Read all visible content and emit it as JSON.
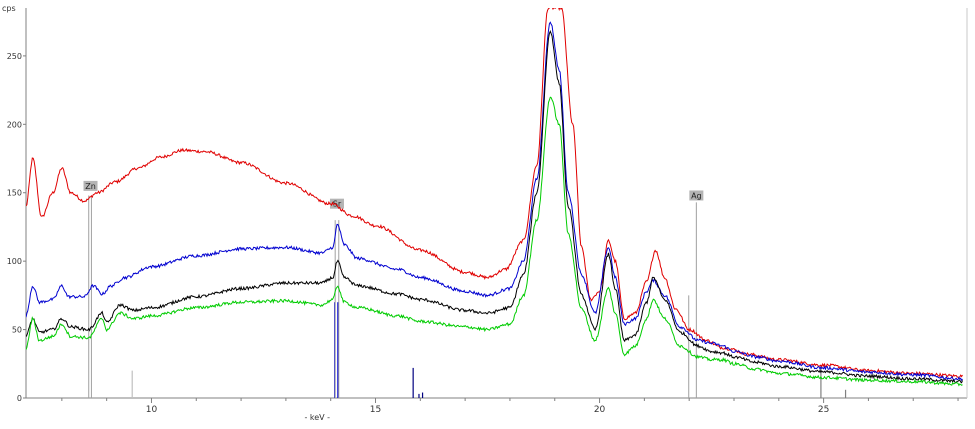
{
  "chart_data": {
    "type": "line",
    "title": "",
    "xlabel": "- keV -",
    "ylabel": "cps",
    "xlim": [
      7.2,
      28.2
    ],
    "ylim": [
      0,
      285
    ],
    "x_ticks": [
      10,
      15,
      20,
      25
    ],
    "y_ticks": [
      0,
      50,
      100,
      150,
      200,
      250
    ],
    "grid": false,
    "legend": "none",
    "series": [
      {
        "color": "#e00000",
        "points": [
          [
            7.2,
            140
          ],
          [
            7.35,
            175
          ],
          [
            7.55,
            132
          ],
          [
            7.8,
            150
          ],
          [
            8.0,
            168
          ],
          [
            8.2,
            150
          ],
          [
            8.5,
            144
          ],
          [
            8.8,
            150
          ],
          [
            9.2,
            158
          ],
          [
            9.7,
            168
          ],
          [
            10.2,
            176
          ],
          [
            10.7,
            181
          ],
          [
            11.2,
            180
          ],
          [
            12.0,
            172
          ],
          [
            13.0,
            157
          ],
          [
            14.0,
            142
          ],
          [
            14.5,
            133
          ],
          [
            15.0,
            126
          ],
          [
            16.0,
            108
          ],
          [
            17.0,
            92
          ],
          [
            17.5,
            88
          ],
          [
            17.9,
            94
          ],
          [
            18.3,
            115
          ],
          [
            18.6,
            170
          ],
          [
            18.85,
            285
          ],
          [
            19.15,
            285
          ],
          [
            19.4,
            200
          ],
          [
            19.6,
            110
          ],
          [
            19.8,
            72
          ],
          [
            20.0,
            78
          ],
          [
            20.2,
            115
          ],
          [
            20.35,
            100
          ],
          [
            20.55,
            58
          ],
          [
            20.8,
            62
          ],
          [
            21.05,
            85
          ],
          [
            21.25,
            108
          ],
          [
            21.45,
            88
          ],
          [
            21.7,
            65
          ],
          [
            22.0,
            50
          ],
          [
            22.4,
            42
          ],
          [
            22.7,
            37
          ],
          [
            22.9,
            36
          ],
          [
            23.3,
            32
          ],
          [
            24.0,
            28
          ],
          [
            25.0,
            24
          ],
          [
            26.0,
            20
          ],
          [
            27.0,
            18
          ],
          [
            28.1,
            16
          ]
        ]
      },
      {
        "color": "#0000d0",
        "points": [
          [
            7.2,
            60
          ],
          [
            7.35,
            82
          ],
          [
            7.5,
            70
          ],
          [
            7.8,
            72
          ],
          [
            8.0,
            82
          ],
          [
            8.15,
            74
          ],
          [
            8.5,
            74
          ],
          [
            8.7,
            82
          ],
          [
            8.9,
            76
          ],
          [
            9.1,
            82
          ],
          [
            9.4,
            88
          ],
          [
            10.0,
            96
          ],
          [
            11.0,
            104
          ],
          [
            12.0,
            109
          ],
          [
            13.0,
            110
          ],
          [
            13.8,
            106
          ],
          [
            14.05,
            110
          ],
          [
            14.15,
            127
          ],
          [
            14.3,
            112
          ],
          [
            14.6,
            102
          ],
          [
            15.5,
            94
          ],
          [
            16.0,
            88
          ],
          [
            17.0,
            78
          ],
          [
            17.5,
            75
          ],
          [
            18.0,
            80
          ],
          [
            18.3,
            100
          ],
          [
            18.6,
            160
          ],
          [
            18.9,
            275
          ],
          [
            19.1,
            240
          ],
          [
            19.3,
            150
          ],
          [
            19.6,
            90
          ],
          [
            19.9,
            62
          ],
          [
            20.2,
            110
          ],
          [
            20.35,
            88
          ],
          [
            20.55,
            54
          ],
          [
            20.8,
            58
          ],
          [
            21.05,
            78
          ],
          [
            21.2,
            86
          ],
          [
            21.45,
            75
          ],
          [
            21.8,
            52
          ],
          [
            22.2,
            42
          ],
          [
            22.5,
            40
          ],
          [
            22.75,
            38
          ],
          [
            23.0,
            34
          ],
          [
            23.5,
            30
          ],
          [
            24.0,
            27
          ],
          [
            25.0,
            22
          ],
          [
            26.0,
            19
          ],
          [
            27.0,
            17
          ],
          [
            28.1,
            14
          ]
        ]
      },
      {
        "color": "#000000",
        "points": [
          [
            7.2,
            45
          ],
          [
            7.35,
            58
          ],
          [
            7.5,
            48
          ],
          [
            7.8,
            50
          ],
          [
            8.0,
            58
          ],
          [
            8.2,
            52
          ],
          [
            8.6,
            50
          ],
          [
            8.9,
            62
          ],
          [
            9.0,
            55
          ],
          [
            9.3,
            68
          ],
          [
            9.6,
            64
          ],
          [
            10.0,
            66
          ],
          [
            11.0,
            74
          ],
          [
            12.0,
            80
          ],
          [
            13.0,
            84
          ],
          [
            13.8,
            84
          ],
          [
            14.05,
            88
          ],
          [
            14.15,
            100
          ],
          [
            14.3,
            88
          ],
          [
            14.6,
            82
          ],
          [
            15.5,
            76
          ],
          [
            16.0,
            72
          ],
          [
            17.0,
            64
          ],
          [
            17.5,
            62
          ],
          [
            18.0,
            66
          ],
          [
            18.3,
            90
          ],
          [
            18.6,
            150
          ],
          [
            18.9,
            268
          ],
          [
            19.1,
            230
          ],
          [
            19.3,
            140
          ],
          [
            19.6,
            75
          ],
          [
            19.9,
            50
          ],
          [
            20.2,
            105
          ],
          [
            20.35,
            80
          ],
          [
            20.55,
            42
          ],
          [
            20.8,
            46
          ],
          [
            21.05,
            70
          ],
          [
            21.2,
            88
          ],
          [
            21.45,
            72
          ],
          [
            21.8,
            48
          ],
          [
            22.2,
            38
          ],
          [
            22.5,
            34
          ],
          [
            22.75,
            33
          ],
          [
            23.0,
            30
          ],
          [
            23.5,
            26
          ],
          [
            24.0,
            23
          ],
          [
            25.0,
            19
          ],
          [
            26.0,
            16
          ],
          [
            27.0,
            14
          ],
          [
            28.1,
            12
          ]
        ]
      },
      {
        "color": "#00cc00",
        "points": [
          [
            7.2,
            36
          ],
          [
            7.35,
            58
          ],
          [
            7.5,
            42
          ],
          [
            7.8,
            45
          ],
          [
            8.0,
            54
          ],
          [
            8.2,
            45
          ],
          [
            8.6,
            44
          ],
          [
            8.9,
            58
          ],
          [
            9.0,
            50
          ],
          [
            9.3,
            62
          ],
          [
            9.6,
            58
          ],
          [
            10.0,
            60
          ],
          [
            11.0,
            66
          ],
          [
            12.0,
            70
          ],
          [
            13.0,
            71
          ],
          [
            13.8,
            68
          ],
          [
            14.05,
            72
          ],
          [
            14.15,
            82
          ],
          [
            14.3,
            70
          ],
          [
            14.6,
            66
          ],
          [
            15.5,
            60
          ],
          [
            16.0,
            56
          ],
          [
            17.0,
            52
          ],
          [
            17.5,
            50
          ],
          [
            18.0,
            54
          ],
          [
            18.3,
            75
          ],
          [
            18.6,
            130
          ],
          [
            18.9,
            220
          ],
          [
            19.1,
            200
          ],
          [
            19.3,
            120
          ],
          [
            19.6,
            65
          ],
          [
            19.9,
            42
          ],
          [
            20.2,
            80
          ],
          [
            20.35,
            62
          ],
          [
            20.55,
            32
          ],
          [
            20.8,
            38
          ],
          [
            21.05,
            58
          ],
          [
            21.2,
            72
          ],
          [
            21.45,
            58
          ],
          [
            21.8,
            38
          ],
          [
            22.2,
            30
          ],
          [
            22.5,
            28
          ],
          [
            22.75,
            28
          ],
          [
            23.0,
            25
          ],
          [
            23.5,
            21
          ],
          [
            24.0,
            18
          ],
          [
            25.0,
            15
          ],
          [
            26.0,
            13
          ],
          [
            27.0,
            12
          ],
          [
            28.1,
            10
          ]
        ]
      }
    ],
    "element_markers": [
      {
        "label": "Zn",
        "x": 8.64,
        "line_top": 155,
        "lines": [
          [
            8.6,
            148
          ],
          [
            8.66,
            148
          ]
        ]
      },
      {
        "label": "Sr",
        "x": 14.14,
        "line_top": 142,
        "lines": [
          [
            14.1,
            130
          ],
          [
            14.18,
            130
          ]
        ]
      },
      {
        "label": "Ag",
        "x": 22.16,
        "line_top": 148,
        "lines": [
          [
            21.99,
            75
          ],
          [
            22.16,
            143
          ]
        ]
      }
    ],
    "stick_lines": [
      {
        "x": 9.57,
        "y": 20,
        "color": "#c0c0c0"
      },
      {
        "x": 14.09,
        "y": 70,
        "color": "#0000d0"
      },
      {
        "x": 14.16,
        "y": 70,
        "color": "#0000d0"
      },
      {
        "x": 15.84,
        "y": 22,
        "color": "#000080"
      },
      {
        "x": 15.97,
        "y": 3,
        "color": "#000080"
      },
      {
        "x": 16.05,
        "y": 4,
        "color": "#000080"
      },
      {
        "x": 24.94,
        "y": 24,
        "color": "#808080"
      },
      {
        "x": 25.49,
        "y": 6,
        "color": "#808080"
      }
    ]
  }
}
